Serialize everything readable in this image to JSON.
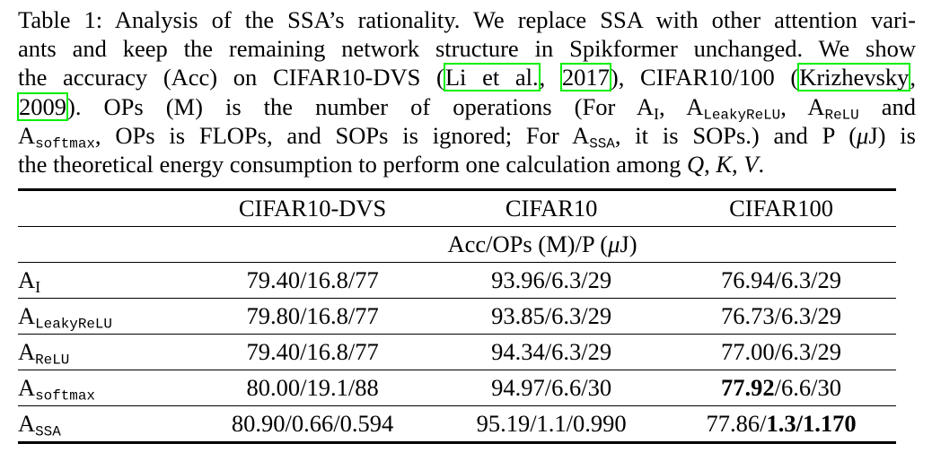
{
  "caption": {
    "line1_a": "Table 1: ",
    "line1_b": "Analysis of the SSA’s rationality. We replace SSA with other attention vari-",
    "line2": "ants and keep the remaining network structure in Spikformer unchanged. We show",
    "line3_a": "the accuracy (Acc) on CIFAR10-DVS (",
    "cite1_author": "Li et al.",
    "cite_sep": ", ",
    "cite1_year": "2017",
    "line3_b": "), CIFAR10/100 (",
    "cite2_author": "Krizhevsky",
    "line4_comma": ",",
    "cite2_year": "2009",
    "line4_a": ").  OPs (M) is the number of operations (For ",
    "line4_b": " and",
    "line5_a": ", OPs is FLOPs, and SOPs is ignored; For ",
    "line5_b": ", it is SOPs.) and P (",
    "mu": "μ",
    "line5_c": "J) is",
    "line6_a": "the theoretical energy consumption to perform one calculation among ",
    "math_q": "Q",
    "math_k": "K",
    "math_v": "V",
    "comma": ", ",
    "period": "."
  },
  "variants": {
    "A": "A",
    "I": "I",
    "leaky": "LeakyReLU",
    "relu": "ReLU",
    "softmax": "softmax",
    "ssa": "SSA"
  },
  "table": {
    "headers": [
      "CIFAR10-DVS",
      "CIFAR10",
      "CIFAR100"
    ],
    "metric_a": "Acc/OPs (M)/P (",
    "metric_mu": "μ",
    "metric_b": "J)",
    "rows": [
      {
        "cells": [
          "79.40/16.8/77",
          "93.96/6.3/29",
          "76.94/6.3/29"
        ]
      },
      {
        "cells": [
          "79.80/16.8/77",
          "93.85/6.3/29",
          "76.73/6.3/29"
        ]
      },
      {
        "cells": [
          "79.40/16.8/77",
          "94.34/6.3/29",
          "77.00/6.3/29"
        ]
      },
      {
        "cells": [
          "80.00/19.1/88",
          "94.97/6.6/30",
          [
            "77.92",
            "/6.6/30"
          ]
        ]
      },
      {
        "cells": [
          "80.90/0.66/0.594",
          "95.19/1.1/0.990",
          [
            "77.86/",
            "1.3/1.170"
          ]
        ]
      }
    ]
  }
}
